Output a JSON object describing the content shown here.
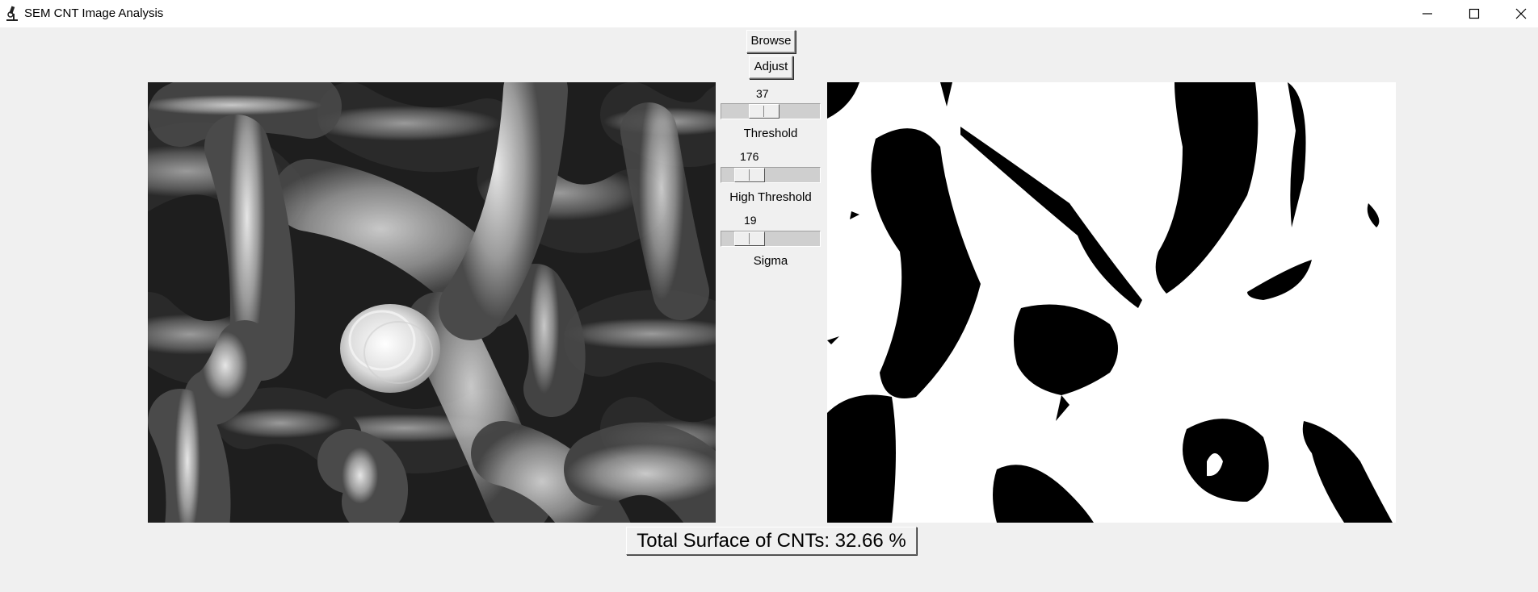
{
  "window": {
    "title": "SEM CNT Image Analysis",
    "icon": "microscope-icon"
  },
  "controls": {
    "browse_label": "Browse",
    "adjust_label": "Adjust"
  },
  "sliders": [
    {
      "name": "Threshold",
      "value": "37"
    },
    {
      "name": "High Threshold",
      "value": "176"
    },
    {
      "name": "Sigma",
      "value": "19"
    }
  ],
  "result": {
    "text": "Total Surface of CNTs: 32.66 %"
  }
}
